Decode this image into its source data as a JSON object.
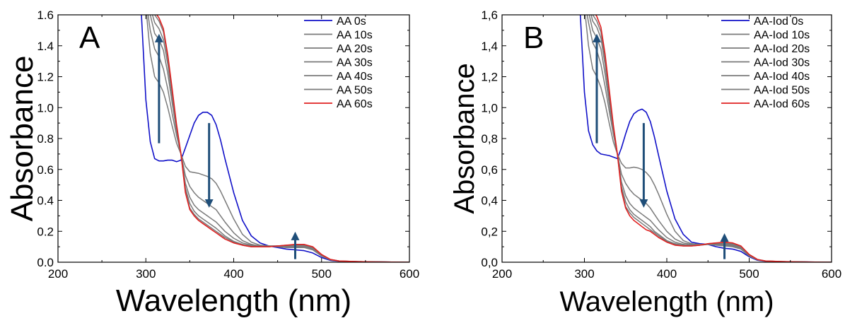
{
  "chart_data": [
    {
      "type": "line",
      "panel_label": "A",
      "xlabel": "Wavelength (nm)",
      "ylabel": "Absorbance",
      "xlim": [
        200,
        600
      ],
      "ylim": [
        0,
        1.6
      ],
      "x_ticks": [
        "200",
        "300",
        "400",
        "500",
        "600"
      ],
      "y_ticks": [
        "0.0",
        "0.2",
        "0.4",
        "0.6",
        "0.8",
        "1.0",
        "1.2",
        "1.4",
        "1.6"
      ],
      "grid": false,
      "legend_position": "top-right",
      "x": [
        290,
        295,
        300,
        305,
        310,
        315,
        320,
        325,
        330,
        335,
        340,
        345,
        350,
        355,
        360,
        365,
        370,
        375,
        380,
        385,
        390,
        400,
        410,
        420,
        430,
        440,
        450,
        460,
        470,
        480,
        490,
        500,
        510,
        520,
        540,
        560,
        580,
        600
      ],
      "series": [
        {
          "name": "AA 0s",
          "color": "#1010c8",
          "values": [
            1.7,
            1.6,
            1.05,
            0.78,
            0.67,
            0.655,
            0.655,
            0.66,
            0.66,
            0.65,
            0.66,
            0.74,
            0.82,
            0.9,
            0.95,
            0.97,
            0.97,
            0.95,
            0.89,
            0.79,
            0.67,
            0.45,
            0.27,
            0.17,
            0.125,
            0.105,
            0.095,
            0.085,
            0.08,
            0.075,
            0.06,
            0.03,
            0.012,
            0.006,
            0.003,
            0.002,
            0.001,
            0.0
          ]
        },
        {
          "name": "AA 10s",
          "color": "#7a7a7a",
          "values": [
            1.7,
            1.7,
            1.65,
            1.35,
            1.2,
            1.16,
            1.1,
            1.0,
            0.88,
            0.77,
            0.7,
            0.62,
            0.585,
            0.58,
            0.575,
            0.565,
            0.555,
            0.54,
            0.51,
            0.46,
            0.4,
            0.28,
            0.18,
            0.13,
            0.11,
            0.105,
            0.1,
            0.095,
            0.095,
            0.095,
            0.08,
            0.04,
            0.015,
            0.007,
            0.003,
            0.002,
            0.001,
            0.0
          ]
        },
        {
          "name": "AA 20s",
          "color": "#7a7a7a",
          "values": [
            1.7,
            1.7,
            1.7,
            1.5,
            1.38,
            1.33,
            1.25,
            1.12,
            0.96,
            0.82,
            0.7,
            0.56,
            0.49,
            0.45,
            0.42,
            0.4,
            0.38,
            0.36,
            0.34,
            0.3,
            0.26,
            0.19,
            0.14,
            0.115,
            0.105,
            0.105,
            0.105,
            0.1,
            0.1,
            0.1,
            0.085,
            0.04,
            0.016,
            0.007,
            0.003,
            0.002,
            0.001,
            0.0
          ]
        },
        {
          "name": "AA 30s",
          "color": "#7a7a7a",
          "values": [
            1.7,
            1.7,
            1.7,
            1.6,
            1.48,
            1.44,
            1.37,
            1.22,
            1.03,
            0.85,
            0.7,
            0.51,
            0.42,
            0.37,
            0.34,
            0.32,
            0.3,
            0.28,
            0.26,
            0.23,
            0.2,
            0.155,
            0.125,
            0.11,
            0.105,
            0.105,
            0.105,
            0.105,
            0.105,
            0.1,
            0.09,
            0.045,
            0.017,
            0.008,
            0.004,
            0.002,
            0.001,
            0.0
          ]
        },
        {
          "name": "AA 40s",
          "color": "#7a7a7a",
          "values": [
            1.7,
            1.7,
            1.7,
            1.65,
            1.55,
            1.51,
            1.44,
            1.28,
            1.07,
            0.87,
            0.7,
            0.48,
            0.38,
            0.33,
            0.3,
            0.28,
            0.26,
            0.24,
            0.22,
            0.195,
            0.17,
            0.135,
            0.115,
            0.105,
            0.1,
            0.1,
            0.105,
            0.105,
            0.105,
            0.105,
            0.09,
            0.045,
            0.017,
            0.008,
            0.004,
            0.002,
            0.001,
            0.0
          ]
        },
        {
          "name": "AA 50s",
          "color": "#7a7a7a",
          "values": [
            1.7,
            1.7,
            1.7,
            1.7,
            1.6,
            1.56,
            1.49,
            1.32,
            1.1,
            0.88,
            0.7,
            0.46,
            0.35,
            0.31,
            0.28,
            0.26,
            0.24,
            0.22,
            0.2,
            0.18,
            0.16,
            0.13,
            0.11,
            0.1,
            0.1,
            0.1,
            0.105,
            0.11,
            0.11,
            0.11,
            0.095,
            0.045,
            0.018,
            0.008,
            0.004,
            0.002,
            0.001,
            0.0
          ]
        },
        {
          "name": "AA 60s",
          "color": "#e02020",
          "values": [
            1.7,
            1.7,
            1.7,
            1.7,
            1.62,
            1.58,
            1.51,
            1.34,
            1.12,
            0.89,
            0.7,
            0.45,
            0.34,
            0.3,
            0.27,
            0.25,
            0.23,
            0.21,
            0.19,
            0.17,
            0.15,
            0.125,
            0.11,
            0.1,
            0.1,
            0.1,
            0.105,
            0.11,
            0.115,
            0.115,
            0.1,
            0.05,
            0.018,
            0.008,
            0.004,
            0.002,
            0.001,
            0.0
          ]
        }
      ],
      "arrows": [
        {
          "x": 315,
          "y_from": 0.77,
          "y_to": 1.45
        },
        {
          "x": 372,
          "y_from": 0.9,
          "y_to": 0.38
        },
        {
          "x": 470,
          "y_from": 0.02,
          "y_to": 0.17
        }
      ]
    },
    {
      "type": "line",
      "panel_label": "B",
      "xlabel": "Wavelength (nm)",
      "ylabel": "Absorbance",
      "xlim": [
        200,
        600
      ],
      "ylim": [
        0,
        1.6
      ],
      "x_ticks": [
        "200",
        "300",
        "400",
        "500",
        "600"
      ],
      "y_ticks": [
        "0,0",
        "0,2",
        "0,4",
        "0,6",
        "0,8",
        "1,0",
        "1,2",
        "1,4",
        "1,6"
      ],
      "grid": false,
      "legend_position": "top-right",
      "x": [
        290,
        295,
        300,
        305,
        310,
        315,
        320,
        325,
        330,
        335,
        340,
        345,
        350,
        355,
        360,
        365,
        370,
        375,
        380,
        385,
        390,
        400,
        410,
        420,
        430,
        440,
        450,
        460,
        470,
        480,
        490,
        500,
        510,
        520,
        540,
        560,
        580,
        600
      ],
      "series": [
        {
          "name": "AA-Iod 0s",
          "color": "#1010c8",
          "values": [
            1.7,
            1.6,
            1.1,
            0.85,
            0.76,
            0.72,
            0.7,
            0.695,
            0.69,
            0.68,
            0.67,
            0.74,
            0.83,
            0.91,
            0.96,
            0.98,
            0.99,
            0.97,
            0.91,
            0.81,
            0.69,
            0.46,
            0.28,
            0.18,
            0.13,
            0.12,
            0.115,
            0.1,
            0.09,
            0.085,
            0.07,
            0.035,
            0.013,
            0.006,
            0.003,
            0.002,
            0.001,
            0.0
          ]
        },
        {
          "name": "AA-Iod 10s",
          "color": "#7a7a7a",
          "values": [
            1.7,
            1.7,
            1.65,
            1.4,
            1.25,
            1.2,
            1.13,
            1.03,
            0.9,
            0.78,
            0.7,
            0.64,
            0.61,
            0.61,
            0.615,
            0.61,
            0.6,
            0.58,
            0.55,
            0.5,
            0.44,
            0.31,
            0.2,
            0.14,
            0.12,
            0.115,
            0.115,
            0.11,
            0.105,
            0.1,
            0.085,
            0.04,
            0.015,
            0.007,
            0.003,
            0.002,
            0.001,
            0.0
          ]
        },
        {
          "name": "AA-Iod 20s",
          "color": "#7a7a7a",
          "values": [
            1.7,
            1.7,
            1.7,
            1.55,
            1.42,
            1.37,
            1.28,
            1.14,
            0.98,
            0.83,
            0.7,
            0.57,
            0.51,
            0.47,
            0.44,
            0.42,
            0.4,
            0.38,
            0.35,
            0.31,
            0.27,
            0.2,
            0.15,
            0.125,
            0.115,
            0.115,
            0.115,
            0.11,
            0.11,
            0.105,
            0.09,
            0.045,
            0.016,
            0.007,
            0.003,
            0.002,
            0.001,
            0.0
          ]
        },
        {
          "name": "AA-Iod 30s",
          "color": "#7a7a7a",
          "values": [
            1.7,
            1.7,
            1.7,
            1.62,
            1.5,
            1.45,
            1.38,
            1.22,
            1.03,
            0.85,
            0.7,
            0.52,
            0.43,
            0.38,
            0.35,
            0.33,
            0.31,
            0.29,
            0.27,
            0.24,
            0.21,
            0.16,
            0.13,
            0.115,
            0.11,
            0.11,
            0.115,
            0.115,
            0.115,
            0.11,
            0.095,
            0.045,
            0.017,
            0.008,
            0.004,
            0.002,
            0.001,
            0.0
          ]
        },
        {
          "name": "AA-Iod 40s",
          "color": "#7a7a7a",
          "values": [
            1.7,
            1.7,
            1.7,
            1.67,
            1.56,
            1.52,
            1.45,
            1.28,
            1.07,
            0.87,
            0.7,
            0.49,
            0.39,
            0.34,
            0.31,
            0.29,
            0.27,
            0.25,
            0.23,
            0.2,
            0.18,
            0.14,
            0.12,
            0.11,
            0.11,
            0.11,
            0.115,
            0.12,
            0.12,
            0.115,
            0.1,
            0.048,
            0.018,
            0.008,
            0.004,
            0.002,
            0.001,
            0.0
          ]
        },
        {
          "name": "AA-Iod 50s",
          "color": "#7a7a7a",
          "values": [
            1.7,
            1.7,
            1.7,
            1.7,
            1.6,
            1.56,
            1.49,
            1.32,
            1.1,
            0.88,
            0.7,
            0.47,
            0.36,
            0.32,
            0.29,
            0.27,
            0.25,
            0.23,
            0.21,
            0.19,
            0.17,
            0.135,
            0.115,
            0.105,
            0.105,
            0.11,
            0.12,
            0.125,
            0.125,
            0.12,
            0.1,
            0.05,
            0.018,
            0.008,
            0.004,
            0.002,
            0.001,
            0.0
          ]
        },
        {
          "name": "AA-Iod 60s",
          "color": "#e02020",
          "values": [
            1.7,
            1.7,
            1.7,
            1.7,
            1.63,
            1.59,
            1.52,
            1.35,
            1.12,
            0.89,
            0.7,
            0.46,
            0.35,
            0.3,
            0.27,
            0.25,
            0.23,
            0.21,
            0.2,
            0.18,
            0.16,
            0.13,
            0.11,
            0.105,
            0.105,
            0.11,
            0.12,
            0.125,
            0.13,
            0.125,
            0.105,
            0.05,
            0.018,
            0.008,
            0.004,
            0.002,
            0.001,
            0.0
          ]
        }
      ],
      "arrows": [
        {
          "x": 315,
          "y_from": 0.77,
          "y_to": 1.45
        },
        {
          "x": 372,
          "y_from": 0.9,
          "y_to": 0.38
        },
        {
          "x": 470,
          "y_from": 0.02,
          "y_to": 0.16
        }
      ]
    }
  ]
}
